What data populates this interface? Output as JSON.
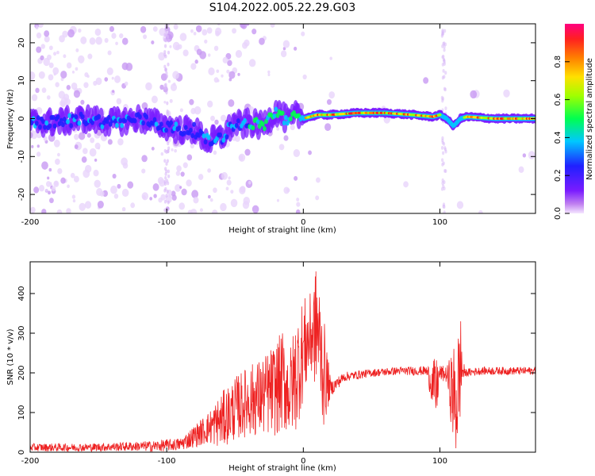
{
  "title": "S104.2022.005.22.29.G03",
  "colors": {
    "snr_line": "#ee2222",
    "background": "#ffffff",
    "colormap": [
      "#f4e6ff",
      "#c080f0",
      "#7a1cff",
      "#2020ff",
      "#00c8ff",
      "#00ff50",
      "#a0ff00",
      "#ffe000",
      "#ff8000",
      "#ff2020",
      "#ff0080"
    ]
  },
  "chart_data": [
    {
      "type": "heatmap",
      "name": "spectrogram",
      "xlabel": "Height of straight line (km)",
      "ylabel": "Frequency (Hz)",
      "xlim": [
        -200,
        170
      ],
      "ylim": [
        -25,
        25
      ],
      "xticks": [
        -200,
        -100,
        0,
        100
      ],
      "xtick_labels": [
        "-200",
        "-100",
        "0",
        "100"
      ],
      "yticks": [
        -20,
        -10,
        0,
        10,
        20
      ],
      "ytick_labels": [
        "-20",
        "-10",
        "0",
        "10",
        "20"
      ],
      "colorbar": {
        "label": "Normalized spectral amplitude",
        "range": [
          0,
          1
        ],
        "ticks": [
          0.0,
          0.2,
          0.4,
          0.6,
          0.8
        ],
        "tick_labels": [
          "0.0",
          "0.2",
          "0.4",
          "0.6",
          "0.8"
        ]
      },
      "ridge": {
        "x": [
          -200,
          -180,
          -160,
          -140,
          -120,
          -100,
          -90,
          -80,
          -70,
          -60,
          -50,
          -45,
          -40,
          -30,
          -20,
          -10,
          -5,
          0,
          10,
          20,
          40,
          60,
          80,
          95,
          100,
          105,
          110,
          115,
          120,
          140,
          170
        ],
        "y": [
          -1,
          -1,
          0,
          -1,
          0,
          -2,
          -3,
          -3,
          -6,
          -5,
          -1,
          -2,
          -1,
          -2,
          2,
          -1,
          1,
          0,
          1,
          1,
          1.5,
          1.5,
          1,
          0.5,
          1,
          0,
          -2,
          0,
          0.5,
          0,
          0
        ]
      }
    },
    {
      "type": "line",
      "name": "snr",
      "xlabel": "Height of straight line (km)",
      "ylabel": "SNR (10 * v/v)",
      "xlim": [
        -200,
        170
      ],
      "ylim": [
        0,
        480
      ],
      "xticks": [
        -200,
        -100,
        0,
        100
      ],
      "xtick_labels": [
        "-200",
        "-100",
        "0",
        "100"
      ],
      "yticks": [
        0,
        100,
        200,
        300,
        400
      ],
      "ytick_labels": [
        "0",
        "100",
        "200",
        "300",
        "400"
      ],
      "envelope": {
        "x": [
          -200,
          -160,
          -120,
          -110,
          -90,
          -70,
          -60,
          -50,
          -40,
          -30,
          -20,
          -15,
          -10,
          -5,
          0,
          5,
          10,
          15,
          20,
          30,
          50,
          70,
          90,
          95,
          97,
          100,
          105,
          110,
          112,
          115,
          118,
          130,
          150,
          170
        ],
        "center": [
          12,
          12,
          15,
          15,
          20,
          60,
          80,
          110,
          130,
          140,
          160,
          180,
          150,
          200,
          260,
          290,
          320,
          200,
          160,
          190,
          200,
          205,
          205,
          170,
          150,
          200,
          195,
          140,
          120,
          220,
          200,
          205,
          205,
          205
        ],
        "spread": [
          10,
          10,
          12,
          14,
          16,
          40,
          70,
          80,
          90,
          100,
          120,
          130,
          110,
          150,
          130,
          110,
          160,
          140,
          20,
          12,
          10,
          10,
          12,
          60,
          90,
          20,
          20,
          130,
          150,
          140,
          10,
          10,
          10,
          10
        ]
      }
    }
  ]
}
